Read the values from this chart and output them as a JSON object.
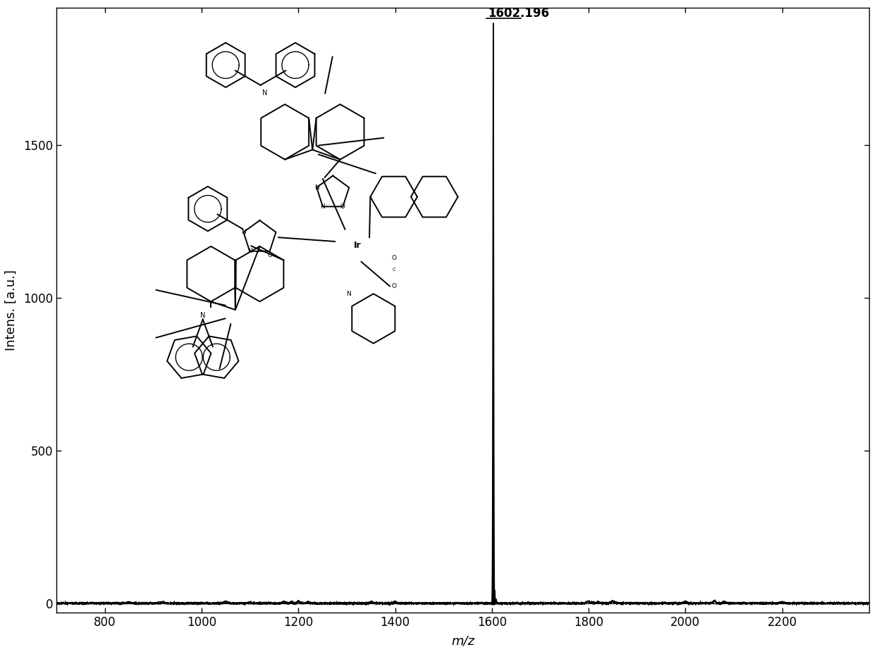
{
  "xlabel": "m/z",
  "ylabel": "Intens. [a.u.]",
  "main_peak_mz": 1602.196,
  "main_peak_intensity": 1900,
  "peak_label": "1602.196",
  "xlim": [
    700,
    2380
  ],
  "ylim": [
    -30,
    1950
  ],
  "xticks": [
    800,
    1000,
    1200,
    1400,
    1600,
    1800,
    2000,
    2200
  ],
  "yticks": [
    0,
    500,
    1000,
    1500
  ],
  "background_color": "#ffffff",
  "line_color": "#000000",
  "noise_seed": 42,
  "xlabel_fontsize": 13,
  "ylabel_fontsize": 13,
  "tick_fontsize": 12,
  "peak_label_fontsize": 12,
  "figsize": [
    12.4,
    9.26
  ],
  "dpi": 100
}
